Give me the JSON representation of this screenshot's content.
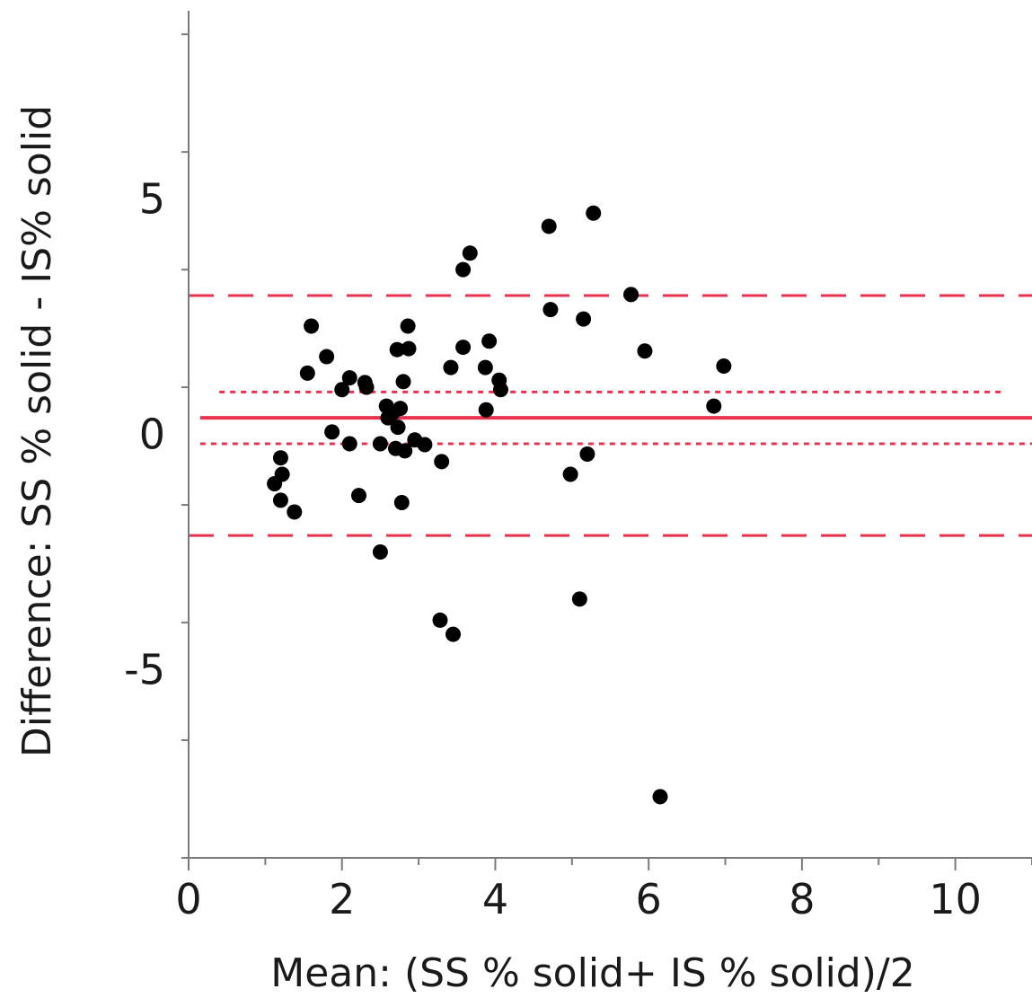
{
  "chart_data": {
    "type": "scatter",
    "title": "",
    "xlabel": "Mean: (SS % solid+ IS % solid)/2",
    "ylabel": "Difference: SS % solid - IS% solid",
    "xlim": [
      0,
      11
    ],
    "ylim": [
      -9,
      9
    ],
    "x_ticks": [
      0,
      2,
      4,
      6,
      8,
      10
    ],
    "x_tick_labels": [
      "0",
      "2",
      "4",
      "6",
      "8",
      "10"
    ],
    "y_ticks": [
      -5,
      0,
      5
    ],
    "y_tick_labels": [
      "-5",
      "0",
      "5"
    ],
    "grid": false,
    "legend": "none",
    "colors": {
      "points": "#000000",
      "reference_lines": "#e8334f",
      "axes": "#7a7a7a"
    },
    "reference_lines": [
      {
        "kind": "mean_difference",
        "y": 0.35,
        "x_range": [
          0.15,
          11
        ],
        "style": "solid"
      },
      {
        "kind": "confidence_upper",
        "y": 0.9,
        "x_range": [
          0.4,
          10.6
        ],
        "style": "dotted"
      },
      {
        "kind": "confidence_lower",
        "y": -0.2,
        "x_range": [
          0.15,
          11
        ],
        "style": "dotted"
      },
      {
        "kind": "limit_of_agreement_upper",
        "y": 2.95,
        "x_range": [
          0,
          11
        ],
        "style": "dashed"
      },
      {
        "kind": "limit_of_agreement_lower",
        "y": -2.15,
        "x_range": [
          0,
          11
        ],
        "style": "dashed"
      }
    ],
    "points": [
      [
        1.12,
        -1.05
      ],
      [
        1.22,
        -0.85
      ],
      [
        1.2,
        -0.5
      ],
      [
        1.2,
        -1.4
      ],
      [
        1.38,
        -1.65
      ],
      [
        1.55,
        1.3
      ],
      [
        1.6,
        2.3
      ],
      [
        1.8,
        1.65
      ],
      [
        1.87,
        0.05
      ],
      [
        2.0,
        0.95
      ],
      [
        2.1,
        1.2
      ],
      [
        2.1,
        -0.2
      ],
      [
        2.22,
        -1.3
      ],
      [
        2.3,
        1.1
      ],
      [
        2.32,
        1.0
      ],
      [
        2.5,
        -0.2
      ],
      [
        2.5,
        -2.5
      ],
      [
        2.58,
        0.6
      ],
      [
        2.6,
        0.35
      ],
      [
        2.66,
        0.45
      ],
      [
        2.7,
        -0.3
      ],
      [
        2.72,
        1.8
      ],
      [
        2.73,
        0.15
      ],
      [
        2.76,
        0.55
      ],
      [
        2.78,
        -1.45
      ],
      [
        2.8,
        1.12
      ],
      [
        2.82,
        -0.35
      ],
      [
        2.86,
        2.3
      ],
      [
        2.87,
        1.82
      ],
      [
        2.95,
        -0.12
      ],
      [
        3.08,
        -0.22
      ],
      [
        3.28,
        -3.95
      ],
      [
        3.3,
        -0.58
      ],
      [
        3.42,
        1.42
      ],
      [
        3.45,
        -4.25
      ],
      [
        3.58,
        1.85
      ],
      [
        3.58,
        3.5
      ],
      [
        3.67,
        3.85
      ],
      [
        3.87,
        1.42
      ],
      [
        3.88,
        0.52
      ],
      [
        3.92,
        1.98
      ],
      [
        4.05,
        1.15
      ],
      [
        4.07,
        0.95
      ],
      [
        4.7,
        4.42
      ],
      [
        4.72,
        2.65
      ],
      [
        4.98,
        -0.85
      ],
      [
        5.1,
        -3.5
      ],
      [
        5.15,
        2.45
      ],
      [
        5.2,
        -0.42
      ],
      [
        5.28,
        4.7
      ],
      [
        5.77,
        2.97
      ],
      [
        5.95,
        1.77
      ],
      [
        6.15,
        -7.7
      ],
      [
        6.85,
        0.6
      ],
      [
        6.98,
        1.45
      ]
    ]
  }
}
